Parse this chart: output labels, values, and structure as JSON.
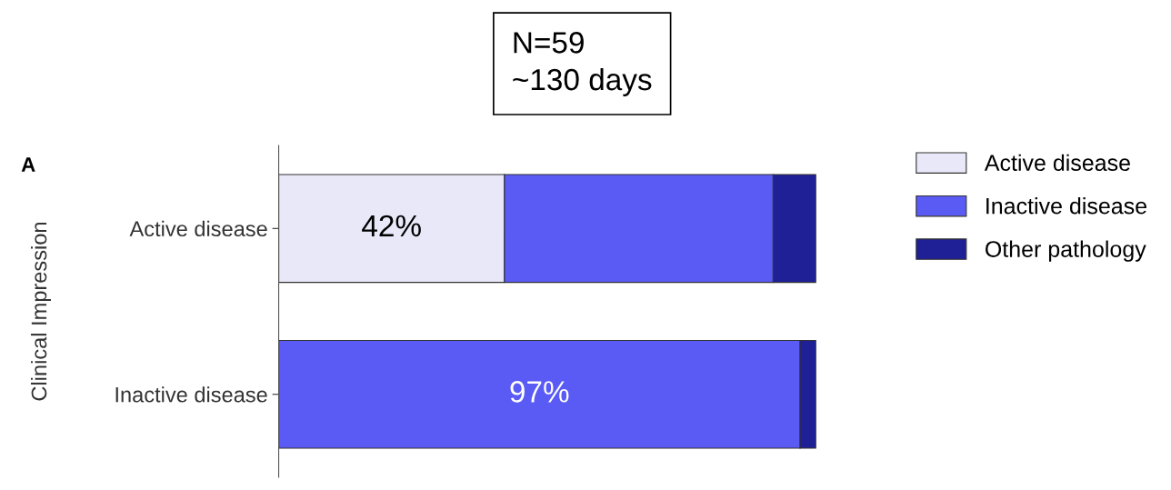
{
  "chart_data": {
    "type": "bar",
    "orientation": "horizontal",
    "stacked": true,
    "categories": [
      "Active disease",
      "Inactive disease"
    ],
    "ylabel": "Clinical Impression",
    "annotations": [
      "N=59",
      "~130 days",
      "A"
    ],
    "series": [
      {
        "name": "Active disease",
        "color": "#e8e8f8",
        "values": [
          42,
          0
        ],
        "value_labels": [
          "42%",
          null
        ]
      },
      {
        "name": "Inactive disease",
        "color": "#5a5af5",
        "values": [
          50,
          97
        ],
        "value_labels": [
          null,
          "97%"
        ]
      },
      {
        "name": "Other pathology",
        "color": "#1f1f96",
        "values": [
          8,
          3
        ],
        "value_labels": [
          null,
          null
        ]
      }
    ],
    "xlim": [
      0,
      100
    ],
    "tick_labels": "y",
    "legend": "right",
    "grid": false
  }
}
